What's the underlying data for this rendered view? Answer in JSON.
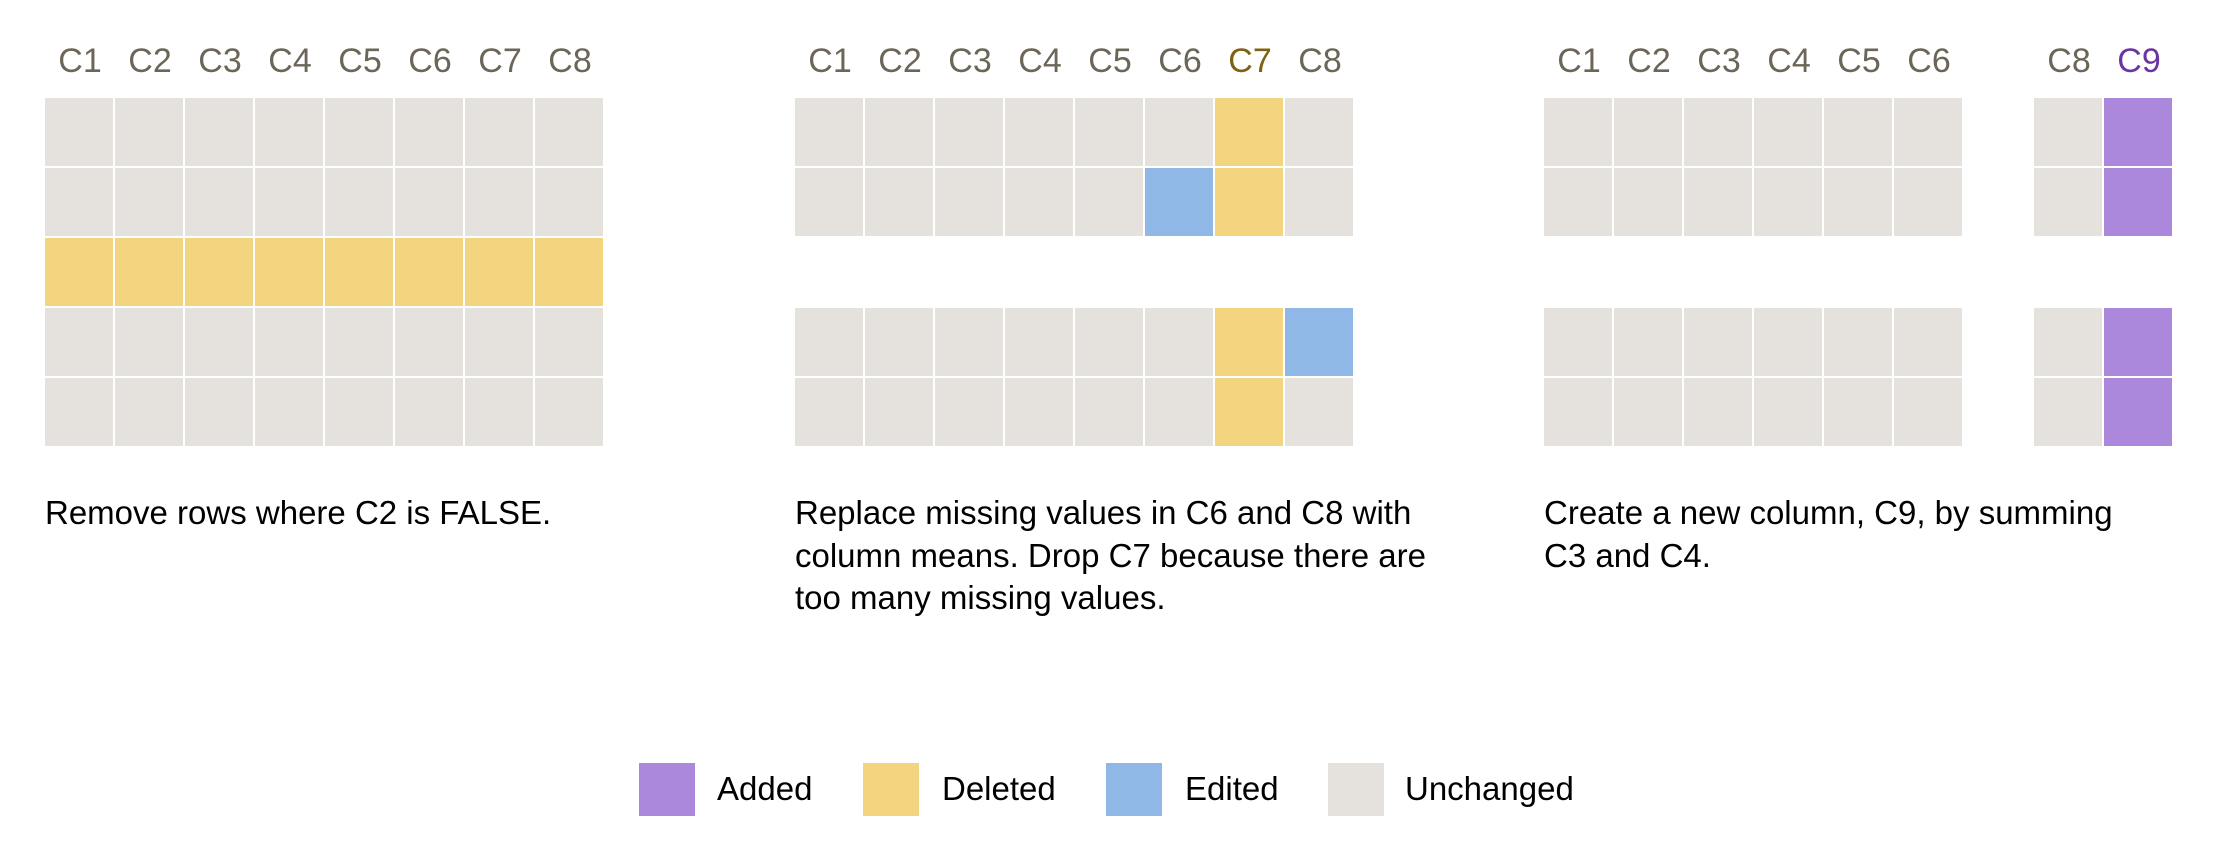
{
  "colors": {
    "a": "#ab88dc",
    "d": "#f2d57e",
    "e": "#8fb8e6",
    "u": "#e5e2de",
    "header": "#6b6657"
  },
  "panels": [
    {
      "columns": [
        "C1",
        "C2",
        "C3",
        "C4",
        "C5",
        "C6",
        "C7",
        "C8"
      ],
      "column_highlight": {},
      "rows": [
        [
          "u",
          "u",
          "u",
          "u",
          "u",
          "u",
          "u",
          "u"
        ],
        [
          "u",
          "u",
          "u",
          "u",
          "u",
          "u",
          "u",
          "u"
        ],
        [
          "d",
          "d",
          "d",
          "d",
          "d",
          "d",
          "d",
          "d"
        ],
        [
          "u",
          "u",
          "u",
          "u",
          "u",
          "u",
          "u",
          "u"
        ],
        [
          "u",
          "u",
          "u",
          "u",
          "u",
          "u",
          "u",
          "u"
        ]
      ],
      "caption": "Remove rows where C2 is FALSE."
    },
    {
      "columns": [
        "C1",
        "C2",
        "C3",
        "C4",
        "C5",
        "C6",
        "C7",
        "C8"
      ],
      "column_highlight": {
        "C7": "#7d6213"
      },
      "rows": [
        [
          "u",
          "u",
          "u",
          "u",
          "u",
          "u",
          "d",
          "u"
        ],
        [
          "u",
          "u",
          "u",
          "u",
          "u",
          "e",
          "d",
          "u"
        ],
        null,
        [
          "u",
          "u",
          "u",
          "u",
          "u",
          "u",
          "d",
          "e"
        ],
        [
          "u",
          "u",
          "u",
          "u",
          "u",
          "u",
          "d",
          "u"
        ]
      ],
      "caption": "Replace missing values in C6 and C8 with column means. Drop C7 because there are too many missing values."
    },
    {
      "columns": [
        "C1",
        "C2",
        "C3",
        "C4",
        "C5",
        "C6",
        null,
        "C8",
        "C9"
      ],
      "column_highlight": {
        "C9": "#6a35a3"
      },
      "rows": [
        [
          "u",
          "u",
          "u",
          "u",
          "u",
          "u",
          null,
          "u",
          "a"
        ],
        [
          "u",
          "u",
          "u",
          "u",
          "u",
          "u",
          null,
          "u",
          "a"
        ],
        null,
        [
          "u",
          "u",
          "u",
          "u",
          "u",
          "u",
          null,
          "u",
          "a"
        ],
        [
          "u",
          "u",
          "u",
          "u",
          "u",
          "u",
          null,
          "u",
          "a"
        ]
      ],
      "caption": "Create a new column, C9, by summing C3 and C4."
    }
  ],
  "legend": [
    {
      "key": "a",
      "label": "Added"
    },
    {
      "key": "d",
      "label": "Deleted"
    },
    {
      "key": "e",
      "label": "Edited"
    },
    {
      "key": "u",
      "label": "Unchanged"
    }
  ]
}
